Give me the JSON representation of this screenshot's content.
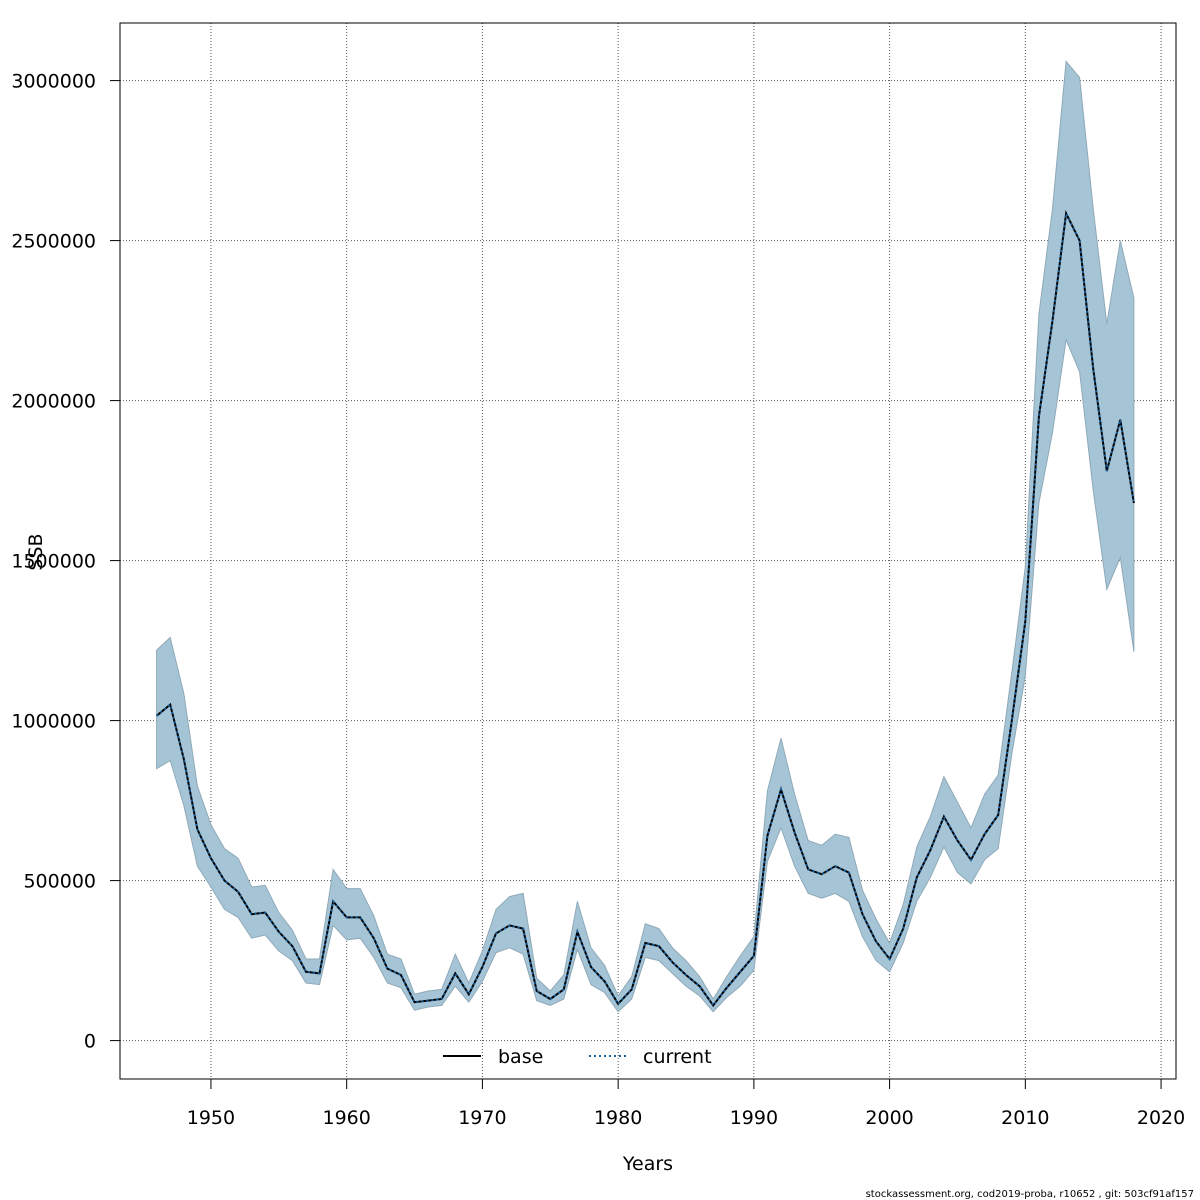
{
  "chart_data": {
    "type": "line",
    "xlabel": "Years",
    "ylabel": "SSB",
    "xlim": [
      1943.3,
      2021.1
    ],
    "ylim": [
      -120000,
      3180000
    ],
    "x_ticks": [
      1950,
      1960,
      1970,
      1980,
      1990,
      2000,
      2010,
      2020
    ],
    "y_ticks": [
      0,
      500000,
      1000000,
      1500000,
      2000000,
      2500000,
      3000000
    ],
    "x_tick_labels": [
      "1950",
      "1960",
      "1970",
      "1980",
      "1990",
      "2000",
      "2010",
      "2020"
    ],
    "y_tick_labels": [
      "0",
      "500000",
      "1000000",
      "1500000",
      "2000000",
      "2500000",
      "3000000"
    ],
    "grid": true,
    "legend_position": "bottom-center",
    "x": [
      1946,
      1947,
      1948,
      1949,
      1950,
      1951,
      1952,
      1953,
      1954,
      1955,
      1956,
      1957,
      1958,
      1959,
      1960,
      1961,
      1962,
      1963,
      1964,
      1965,
      1966,
      1967,
      1968,
      1969,
      1970,
      1971,
      1972,
      1973,
      1974,
      1975,
      1976,
      1977,
      1978,
      1979,
      1980,
      1981,
      1982,
      1983,
      1984,
      1985,
      1986,
      1987,
      1988,
      1989,
      1990,
      1991,
      1992,
      1993,
      1994,
      1995,
      1996,
      1997,
      1998,
      1999,
      2000,
      2001,
      2002,
      2003,
      2004,
      2005,
      2006,
      2007,
      2008,
      2009,
      2010,
      2011,
      2012,
      2013,
      2014,
      2015,
      2016,
      2017,
      2018
    ],
    "series": [
      {
        "name": "base",
        "line_style": "solid",
        "color": "#000000",
        "values": [
          1015000,
          1050000,
          880000,
          660000,
          570000,
          500000,
          465000,
          395000,
          400000,
          340000,
          295000,
          215000,
          210000,
          435000,
          385000,
          385000,
          320000,
          225000,
          205000,
          120000,
          125000,
          130000,
          210000,
          145000,
          230000,
          335000,
          360000,
          350000,
          155000,
          130000,
          160000,
          340000,
          230000,
          185000,
          115000,
          160000,
          305000,
          295000,
          245000,
          205000,
          170000,
          110000,
          165000,
          215000,
          265000,
          640000,
          785000,
          650000,
          535000,
          520000,
          545000,
          525000,
          395000,
          310000,
          255000,
          350000,
          510000,
          595000,
          700000,
          625000,
          565000,
          645000,
          705000,
          1000000,
          1310000,
          1950000,
          2250000,
          2585000,
          2500000,
          2100000,
          1780000,
          1940000,
          1680000
        ]
      },
      {
        "name": "current",
        "line_style": "dotted",
        "color": "#1a5f9e",
        "values": [
          1015000,
          1050000,
          880000,
          660000,
          570000,
          500000,
          465000,
          395000,
          400000,
          340000,
          295000,
          215000,
          210000,
          435000,
          385000,
          385000,
          320000,
          225000,
          205000,
          120000,
          125000,
          130000,
          210000,
          145000,
          230000,
          335000,
          360000,
          350000,
          155000,
          130000,
          160000,
          340000,
          230000,
          185000,
          115000,
          160000,
          305000,
          295000,
          245000,
          205000,
          170000,
          110000,
          165000,
          215000,
          265000,
          640000,
          785000,
          650000,
          535000,
          520000,
          545000,
          525000,
          395000,
          310000,
          255000,
          350000,
          510000,
          595000,
          700000,
          625000,
          565000,
          645000,
          705000,
          1000000,
          1310000,
          1950000,
          2250000,
          2585000,
          2500000,
          2100000,
          1780000,
          1940000,
          1680000
        ]
      }
    ],
    "confidence_band": {
      "color": "#a5c5d6",
      "upper": [
        1220000,
        1260000,
        1085000,
        795000,
        675000,
        600000,
        570000,
        480000,
        485000,
        400000,
        345000,
        255000,
        255000,
        535000,
        475000,
        475000,
        390000,
        270000,
        255000,
        145000,
        155000,
        160000,
        270000,
        180000,
        280000,
        410000,
        450000,
        460000,
        195000,
        155000,
        205000,
        435000,
        290000,
        235000,
        140000,
        200000,
        365000,
        350000,
        290000,
        250000,
        200000,
        130000,
        200000,
        265000,
        325000,
        780000,
        945000,
        770000,
        625000,
        610000,
        645000,
        635000,
        470000,
        380000,
        305000,
        425000,
        605000,
        700000,
        825000,
        745000,
        665000,
        770000,
        830000,
        1150000,
        1480000,
        2270000,
        2600000,
        3060000,
        3010000,
        2600000,
        2240000,
        2500000,
        2320000
      ],
      "lower": [
        850000,
        875000,
        735000,
        545000,
        480000,
        410000,
        385000,
        320000,
        330000,
        280000,
        250000,
        180000,
        175000,
        360000,
        315000,
        320000,
        260000,
        180000,
        165000,
        95000,
        105000,
        110000,
        170000,
        120000,
        185000,
        275000,
        290000,
        270000,
        125000,
        110000,
        130000,
        285000,
        175000,
        150000,
        90000,
        130000,
        260000,
        250000,
        210000,
        170000,
        140000,
        90000,
        135000,
        170000,
        220000,
        560000,
        665000,
        545000,
        460000,
        445000,
        460000,
        435000,
        325000,
        250000,
        215000,
        305000,
        435000,
        510000,
        605000,
        525000,
        490000,
        565000,
        600000,
        895000,
        1140000,
        1680000,
        1900000,
        2190000,
        2090000,
        1720000,
        1410000,
        1510000,
        1215000
      ]
    }
  },
  "legend": {
    "entries": [
      "base",
      "current"
    ]
  },
  "footer": {
    "text": "stockassessment.org, cod2019-proba, r10652 , git: 503cf91af157"
  }
}
